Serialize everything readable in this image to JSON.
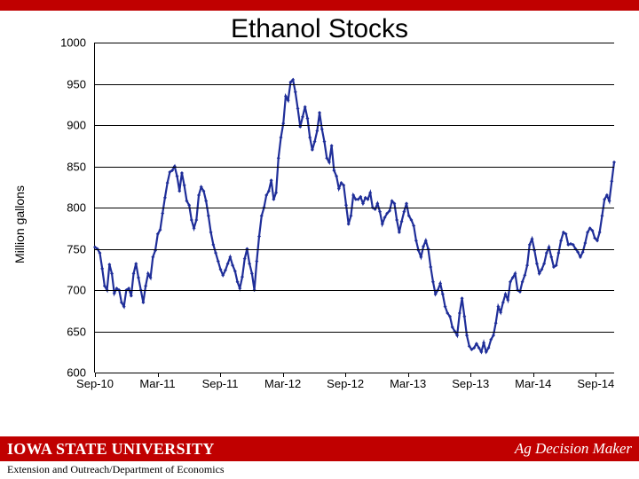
{
  "title": "Ethanol Stocks",
  "chart": {
    "type": "line",
    "ylabel": "Million gallons",
    "ylim": [
      600,
      1000
    ],
    "ytick_step": 50,
    "yticks": [
      600,
      650,
      700,
      750,
      800,
      850,
      900,
      950,
      1000
    ],
    "x_categories": [
      "Sep-10",
      "Mar-11",
      "Sep-11",
      "Mar-12",
      "Sep-12",
      "Mar-13",
      "Sep-13",
      "Mar-14",
      "Sep-14"
    ],
    "x_range_weeks": 216,
    "x_major_tick_weeks": [
      0,
      26,
      52,
      78,
      104,
      130,
      156,
      182,
      208
    ],
    "line_color": "#1f2e99",
    "line_width": 2.2,
    "marker": "diamond",
    "marker_size": 4,
    "marker_color": "#1f2e99",
    "grid_color": "#000000",
    "background_color": "#ffffff",
    "axis_fontsize": 13,
    "label_fontsize": 14,
    "values": [
      752,
      750,
      745,
      726,
      705,
      700,
      731,
      720,
      696,
      702,
      700,
      685,
      680,
      700,
      702,
      693,
      720,
      732,
      715,
      700,
      685,
      705,
      720,
      715,
      740,
      748,
      768,
      773,
      793,
      812,
      830,
      843,
      845,
      850,
      838,
      820,
      842,
      827,
      808,
      803,
      785,
      775,
      785,
      815,
      825,
      820,
      808,
      790,
      770,
      755,
      745,
      735,
      725,
      718,
      724,
      732,
      740,
      730,
      723,
      710,
      702,
      716,
      738,
      750,
      732,
      720,
      700,
      735,
      765,
      790,
      800,
      815,
      820,
      833,
      810,
      818,
      860,
      885,
      902,
      935,
      930,
      952,
      955,
      940,
      920,
      898,
      910,
      922,
      908,
      885,
      870,
      880,
      893,
      915,
      895,
      880,
      860,
      855,
      875,
      845,
      838,
      823,
      830,
      827,
      803,
      780,
      790,
      815,
      810,
      810,
      813,
      805,
      812,
      810,
      818,
      800,
      798,
      805,
      795,
      780,
      788,
      793,
      796,
      808,
      805,
      785,
      770,
      783,
      795,
      805,
      790,
      785,
      778,
      760,
      748,
      740,
      753,
      760,
      750,
      728,
      710,
      695,
      700,
      708,
      695,
      680,
      672,
      668,
      655,
      650,
      645,
      672,
      690,
      668,
      645,
      632,
      628,
      630,
      635,
      630,
      625,
      636,
      625,
      630,
      640,
      645,
      660,
      680,
      673,
      685,
      695,
      688,
      710,
      715,
      720,
      700,
      698,
      710,
      718,
      730,
      755,
      762,
      748,
      732,
      720,
      725,
      732,
      745,
      752,
      740,
      728,
      730,
      745,
      760,
      770,
      768,
      755,
      756,
      755,
      750,
      746,
      740,
      746,
      757,
      770,
      775,
      772,
      763,
      760,
      770,
      790,
      810,
      815,
      808,
      832,
      855
    ]
  },
  "footer": {
    "isu_text": "IOWA STATE UNIVERSITY",
    "brand_text": "Ag Decision Maker",
    "brand_italic_prefix": "Ag",
    "ext_text": "Extension and Outreach/Department of Economics",
    "red_color": "#c00000"
  }
}
